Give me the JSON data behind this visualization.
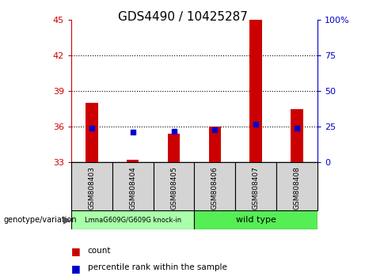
{
  "title": "GDS4490 / 10425287",
  "samples": [
    "GSM808403",
    "GSM808404",
    "GSM808405",
    "GSM808406",
    "GSM808407",
    "GSM808408"
  ],
  "count_values": [
    38.0,
    33.25,
    35.4,
    36.0,
    45.0,
    37.5
  ],
  "percentile_values": [
    24,
    21,
    22,
    23,
    27,
    24
  ],
  "ylim_left": [
    33,
    45
  ],
  "ylim_right": [
    0,
    100
  ],
  "yticks_left": [
    33,
    36,
    39,
    42,
    45
  ],
  "yticks_right": [
    0,
    25,
    50,
    75,
    100
  ],
  "ytick_labels_right": [
    "0",
    "25",
    "50",
    "75",
    "100%"
  ],
  "hlines": [
    36,
    39,
    42
  ],
  "bar_color": "#cc0000",
  "dot_color": "#0000cc",
  "bar_baseline": 33,
  "group1_label": "LmnaG609G/G609G knock-in",
  "group2_label": "wild type",
  "group1_color": "#aaffaa",
  "group2_color": "#55ee55",
  "group1_samples": [
    0,
    1,
    2
  ],
  "group2_samples": [
    3,
    4,
    5
  ],
  "left_axis_color": "#cc0000",
  "right_axis_color": "#0000cc",
  "legend_count_label": "count",
  "legend_pct_label": "percentile rank within the sample",
  "bg_color": "#ffffff",
  "plot_bg_color": "#ffffff",
  "sample_box_color": "#d4d4d4",
  "bar_width": 0.3
}
